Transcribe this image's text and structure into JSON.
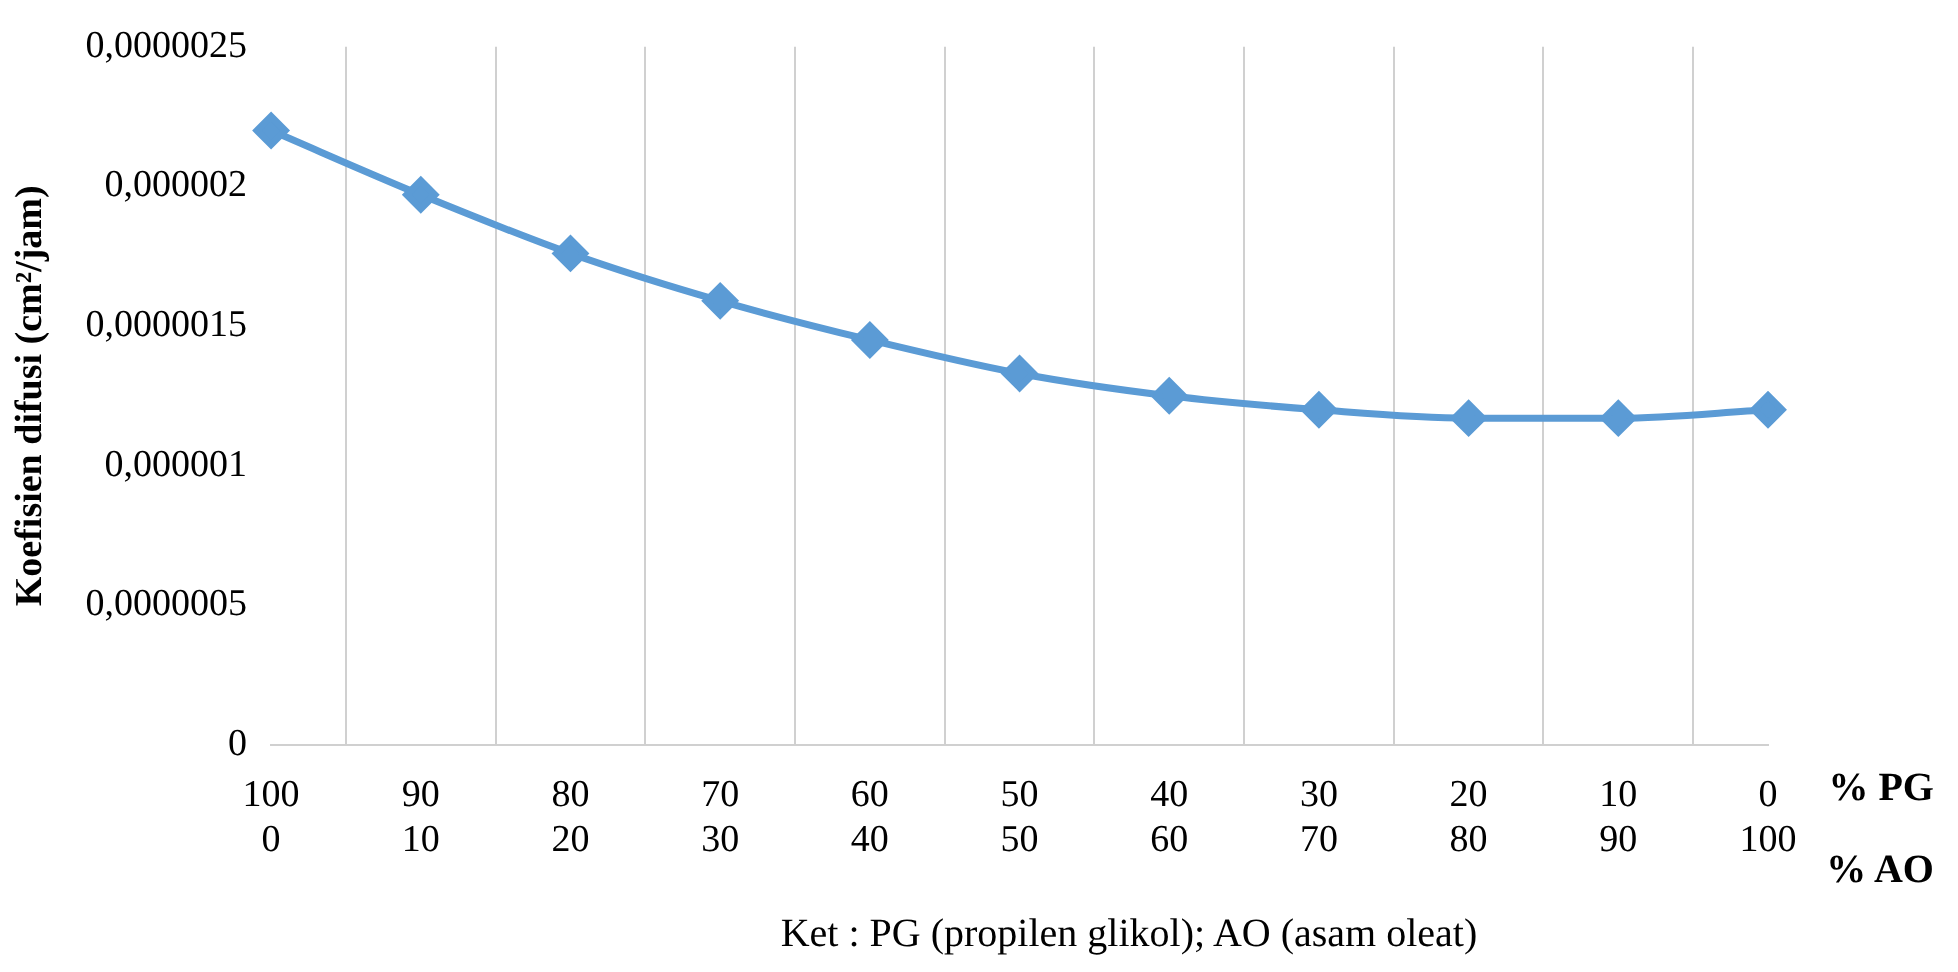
{
  "chart_data": {
    "type": "line",
    "ylabel": "Koefisien difusi (cm²/jam)",
    "categories": [
      "100\n0",
      "90\n10",
      "80\n20",
      "70\n30",
      "60\n40",
      "50\n50",
      "40\n60",
      "30\n70",
      "20\n80",
      "10\n90",
      "0\n100"
    ],
    "series": [
      {
        "color": "#5b9bd5",
        "values": [
          2.2e-06,
          1.97e-06,
          1.76e-06,
          1.59e-06,
          1.45e-06,
          1.33e-06,
          1.25e-06,
          1.2e-06,
          1.17e-06,
          1.17e-06,
          1.2e-06
        ]
      }
    ],
    "ylim": [
      0,
      2.5e-06
    ],
    "yticks": [
      0,
      {
        "value": 5e-07,
        "label": "0,0000005"
      },
      {
        "value": 1e-06,
        "label": "0,000001"
      },
      {
        "value": 1.5e-06,
        "label": "0,0000015"
      },
      {
        "value": 2e-06,
        "label": "0,000002"
      },
      {
        "value": 2.5e-06,
        "label": "0,0000025"
      }
    ],
    "grid": "x",
    "legend": false,
    "marker": "diamond",
    "line_style": "solid",
    "annotations": [
      "% PG",
      "% AO",
      "Ket : PG (propilen glikol); AO (asam oleat)"
    ]
  }
}
